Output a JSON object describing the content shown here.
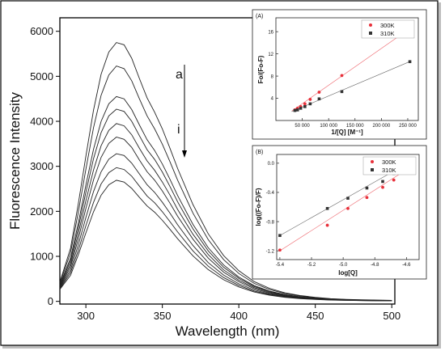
{
  "chart_data": [
    {
      "type": "line",
      "title": "",
      "xlabel": "Wavelength (nm)",
      "ylabel": "Fluorescence Intensity",
      "xlim": [
        283,
        502
      ],
      "ylim": [
        -60,
        6300
      ],
      "x_ticks": [
        "300",
        "350",
        "400",
        "450",
        "500"
      ],
      "y_ticks": [
        "0",
        "1000",
        "2000",
        "3000",
        "4000",
        "5000",
        "6000"
      ],
      "x_tick_values": [
        300,
        350,
        400,
        450,
        500
      ],
      "y_tick_values": [
        0,
        1000,
        2000,
        3000,
        4000,
        5000,
        6000
      ],
      "annotations": {
        "top": "a",
        "bottom": "i"
      },
      "grid": false,
      "x": [
        283,
        290,
        295,
        300,
        305,
        310,
        315,
        320,
        325,
        330,
        335,
        340,
        345,
        350,
        355,
        360,
        370,
        380,
        390,
        400,
        410,
        420,
        430,
        440,
        450,
        460,
        470,
        480,
        490,
        500
      ],
      "series": [
        {
          "values": [
            430,
            1180,
            2160,
            3220,
            4250,
            5050,
            5540,
            5750,
            5700,
            5400,
            4950,
            4520,
            4200,
            3830,
            3400,
            2950,
            2150,
            1500,
            1020,
            680,
            440,
            290,
            190,
            130,
            90,
            60,
            45,
            35,
            28,
            22
          ]
        },
        {
          "values": [
            400,
            1080,
            1970,
            2930,
            3860,
            4580,
            5030,
            5230,
            5170,
            4900,
            4500,
            4120,
            3830,
            3490,
            3100,
            2690,
            1960,
            1370,
            930,
            620,
            400,
            265,
            175,
            118,
            82,
            55,
            41,
            32,
            25,
            20
          ]
        },
        {
          "values": [
            370,
            960,
            1730,
            2580,
            3380,
            4000,
            4390,
            4550,
            4500,
            4260,
            3920,
            3590,
            3350,
            3050,
            2710,
            2350,
            1710,
            1190,
            810,
            540,
            350,
            230,
            152,
            103,
            72,
            48,
            36,
            28,
            22,
            18
          ]
        },
        {
          "values": [
            350,
            900,
            1620,
            2420,
            3170,
            3750,
            4120,
            4270,
            4220,
            4000,
            3680,
            3370,
            3150,
            2870,
            2550,
            2210,
            1610,
            1120,
            760,
            510,
            330,
            217,
            143,
            97,
            68,
            45,
            34,
            26,
            21,
            17
          ]
        },
        {
          "values": [
            330,
            830,
            1500,
            2230,
            2920,
            3460,
            3800,
            3950,
            3900,
            3700,
            3400,
            3120,
            2910,
            2650,
            2360,
            2040,
            1490,
            1040,
            700,
            470,
            305,
            200,
            132,
            90,
            63,
            42,
            32,
            24,
            19,
            15
          ]
        },
        {
          "values": [
            310,
            770,
            1380,
            2060,
            2700,
            3200,
            3510,
            3650,
            3600,
            3420,
            3140,
            2880,
            2690,
            2450,
            2180,
            1890,
            1380,
            960,
            650,
            435,
            282,
            185,
            122,
            83,
            58,
            39,
            29,
            22,
            18,
            14
          ]
        },
        {
          "values": [
            295,
            700,
            1250,
            1860,
            2440,
            2880,
            3160,
            3280,
            3240,
            3070,
            2830,
            2590,
            2420,
            2200,
            1960,
            1700,
            1240,
            860,
            585,
            390,
            254,
            167,
            110,
            75,
            52,
            35,
            26,
            20,
            16,
            13
          ]
        },
        {
          "values": [
            280,
            640,
            1130,
            1680,
            2200,
            2610,
            2860,
            2970,
            2930,
            2780,
            2560,
            2340,
            2190,
            1990,
            1770,
            1540,
            1120,
            780,
            530,
            355,
            230,
            151,
            100,
            68,
            47,
            32,
            24,
            18,
            14,
            12
          ]
        },
        {
          "values": [
            265,
            580,
            1030,
            1520,
            1990,
            2360,
            2590,
            2690,
            2650,
            2510,
            2310,
            2120,
            1980,
            1800,
            1600,
            1390,
            1010,
            705,
            480,
            320,
            208,
            137,
            90,
            61,
            43,
            29,
            22,
            17,
            13,
            11
          ]
        }
      ]
    },
    {
      "type": "scatter",
      "panel_label": "(A)",
      "xlabel": "1/[Q] [M⁻¹]",
      "ylabel": "Fo/(Fo-F)",
      "xlim": [
        0,
        270000
      ],
      "ylim": [
        0,
        18.5
      ],
      "x_ticks": [
        "50 000",
        "100 000",
        "150 000",
        "200 000",
        "250 000"
      ],
      "y_ticks": [
        "4",
        "8",
        "12",
        "16"
      ],
      "x_tick_values": [
        50000,
        100000,
        150000,
        200000,
        250000
      ],
      "y_tick_values": [
        4,
        8,
        12,
        16
      ],
      "legend_position": "top-right",
      "series": [
        {
          "name": "300K",
          "color": "#e8303a",
          "marker": "circle",
          "x": [
            36000,
            41000,
            47000,
            55000,
            65000,
            82000,
            125000,
            254000
          ],
          "y": [
            1.9,
            2.2,
            2.5,
            3.0,
            3.8,
            5.1,
            8.1,
            16.6
          ],
          "fit": [
            [
              30000,
              1.7
            ],
            [
              256000,
              16.7
            ]
          ]
        },
        {
          "name": "310K",
          "color": "#333333",
          "marker": "square",
          "x": [
            36000,
            41000,
            47000,
            55000,
            65000,
            82000,
            125000,
            254000
          ],
          "y": [
            1.8,
            1.9,
            2.2,
            2.5,
            3.0,
            3.9,
            5.2,
            10.6
          ],
          "fit": [
            [
              30000,
              1.6
            ],
            [
              256000,
              10.7
            ]
          ]
        }
      ]
    },
    {
      "type": "scatter",
      "panel_label": "(B)",
      "xlabel": "log[Q]",
      "ylabel": "log((Fo-F)/F)",
      "xlim": [
        -5.42,
        -4.52
      ],
      "ylim": [
        -1.32,
        0.12
      ],
      "x_ticks": [
        "-5.4",
        "-5.2",
        "-5.0",
        "-4.8",
        "-4.6"
      ],
      "y_ticks": [
        "-1.2",
        "-0.8",
        "-0.4",
        "0.0"
      ],
      "x_tick_values": [
        -5.4,
        -5.2,
        -5.0,
        -4.8,
        -4.6
      ],
      "y_tick_values": [
        -1.2,
        -0.8,
        -0.4,
        0.0
      ],
      "legend_position": "top-right",
      "series": [
        {
          "name": "300K",
          "color": "#e8303a",
          "marker": "circle",
          "x": [
            -5.4,
            -5.1,
            -4.97,
            -4.85,
            -4.75,
            -4.68,
            -4.6,
            -4.55
          ],
          "y": [
            -1.19,
            -0.85,
            -0.62,
            -0.47,
            -0.33,
            -0.23,
            -0.11,
            -0.03
          ],
          "fit": [
            [
              -5.4,
              -1.2
            ],
            [
              -4.55,
              -0.02
            ]
          ]
        },
        {
          "name": "310K",
          "color": "#333333",
          "marker": "square",
          "x": [
            -5.4,
            -5.1,
            -4.97,
            -4.85,
            -4.75,
            -4.68,
            -4.6,
            -4.55
          ],
          "y": [
            -0.99,
            -0.62,
            -0.48,
            -0.34,
            -0.25,
            -0.14,
            -0.05,
            0.06
          ],
          "fit": [
            [
              -5.4,
              -0.99
            ],
            [
              -4.55,
              0.05
            ]
          ]
        }
      ]
    }
  ]
}
